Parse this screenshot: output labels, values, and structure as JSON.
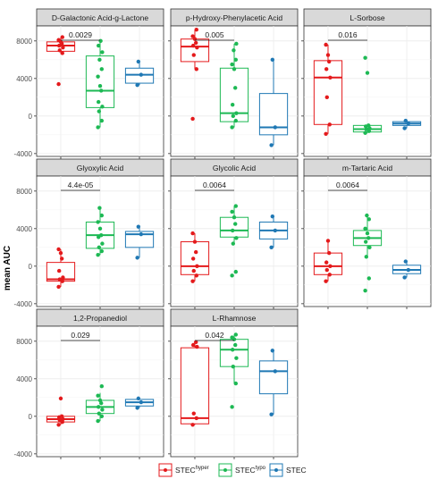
{
  "chart_data": {
    "type": "box",
    "ylabel": "mean AUC",
    "y_ticks": [
      -4000,
      0,
      4000,
      8000
    ],
    "y_tick_labels": [
      "-4000",
      "0",
      "4000",
      "8000"
    ],
    "ylim": [
      -4300,
      9600
    ],
    "groups": [
      {
        "key": "hyper",
        "label": "STEC",
        "sup": "hyper",
        "color": "#E41A1C"
      },
      {
        "key": "typo",
        "label": "STEC",
        "sup": "typo",
        "color": "#1DB954"
      },
      {
        "key": "stec",
        "label": "STEC",
        "sup": "",
        "color": "#1F78B4"
      }
    ],
    "panels": [
      {
        "title": "D-Galactonic Acid-g-Lactone",
        "pvalue": "0.0029",
        "boxes": [
          {
            "q1": 6900,
            "med": 7500,
            "q3": 7900,
            "lo": 6600,
            "hi": 8400,
            "pts": [
              3400,
              6700,
              7000,
              7300,
              7500,
              7700,
              7900,
              8100,
              8400
            ]
          },
          {
            "q1": 900,
            "med": 2700,
            "q3": 6400,
            "lo": -1200,
            "hi": 8000,
            "pts": [
              -1200,
              -500,
              500,
              1000,
              1500,
              2700,
              3200,
              4200,
              5000,
              6000,
              6800,
              7500,
              8000
            ]
          },
          {
            "q1": 3500,
            "med": 4400,
            "q3": 5100,
            "lo": 3300,
            "hi": 5800,
            "pts": [
              3300,
              4400,
              5800
            ]
          }
        ]
      },
      {
        "title": "p-Hydroxy-Phenylacetic Acid",
        "pvalue": "0.005",
        "boxes": [
          {
            "q1": 5800,
            "med": 7400,
            "q3": 8200,
            "lo": 5000,
            "hi": 9200,
            "pts": [
              -300,
              5000,
              6500,
              7300,
              7500,
              7800,
              8200,
              8500,
              9200
            ]
          },
          {
            "q1": -600,
            "med": 300,
            "q3": 5100,
            "lo": -1200,
            "hi": 7700,
            "pts": [
              -1200,
              -500,
              0,
              300,
              1200,
              3000,
              5000,
              5500,
              6000,
              7000,
              7700
            ]
          },
          {
            "q1": -2000,
            "med": -1200,
            "q3": 2400,
            "lo": -3100,
            "hi": 6000,
            "pts": [
              -3100,
              -1200,
              6000
            ]
          }
        ]
      },
      {
        "title": "L-Sorbose",
        "pvalue": "0.016",
        "boxes": [
          {
            "q1": -900,
            "med": 4100,
            "q3": 5900,
            "lo": -1900,
            "hi": 7600,
            "pts": [
              -1900,
              -900,
              2000,
              4100,
              5000,
              5800,
              6500,
              7600
            ]
          },
          {
            "q1": -1700,
            "med": -1400,
            "q3": -1000,
            "lo": -1800,
            "hi": -900,
            "pts": [
              -1800,
              -1600,
              -1400,
              -1300,
              -1100,
              -1000,
              4600,
              6200
            ]
          },
          {
            "q1": -1000,
            "med": -800,
            "q3": -600,
            "lo": -1300,
            "hi": -500,
            "pts": [
              -1300,
              -800,
              -500
            ]
          }
        ]
      },
      {
        "title": "Glyoxylic Acid",
        "pvalue": "4.4e-05",
        "boxes": [
          {
            "q1": -1600,
            "med": -1400,
            "q3": 400,
            "lo": -2200,
            "hi": 1800,
            "pts": [
              -2200,
              -1600,
              -1400,
              -1200,
              -500,
              800,
              1400,
              1800
            ]
          },
          {
            "q1": 1900,
            "med": 3300,
            "q3": 4700,
            "lo": 1200,
            "hi": 6200,
            "pts": [
              1200,
              1600,
              2000,
              2400,
              3100,
              3300,
              4000,
              4700,
              5400,
              6200
            ]
          },
          {
            "q1": 2000,
            "med": 3400,
            "q3": 3700,
            "lo": 900,
            "hi": 4200,
            "pts": [
              900,
              3400,
              4200
            ]
          }
        ]
      },
      {
        "title": "Glycolic Acid",
        "pvalue": "0.0064",
        "boxes": [
          {
            "q1": -900,
            "med": 0,
            "q3": 2600,
            "lo": -1600,
            "hi": 3500,
            "pts": [
              -1600,
              -1000,
              -500,
              0,
              800,
              1500,
              2600,
              3500
            ]
          },
          {
            "q1": 3100,
            "med": 3800,
            "q3": 5200,
            "lo": 2400,
            "hi": 6400,
            "pts": [
              -1000,
              -600,
              2400,
              3000,
              3800,
              4500,
              5200,
              5800,
              6400
            ]
          },
          {
            "q1": 2900,
            "med": 3800,
            "q3": 4700,
            "lo": 2000,
            "hi": 5300,
            "pts": [
              2000,
              3800,
              5300
            ]
          }
        ]
      },
      {
        "title": "m-Tartaric Acid",
        "pvalue": "0.0064",
        "boxes": [
          {
            "q1": -900,
            "med": 0,
            "q3": 1400,
            "lo": -1600,
            "hi": 2700,
            "pts": [
              -1600,
              -900,
              -400,
              0,
              400,
              1400,
              2700
            ]
          },
          {
            "q1": 2200,
            "med": 3000,
            "q3": 3800,
            "lo": 1000,
            "hi": 5400,
            "pts": [
              -2600,
              -1300,
              1000,
              2000,
              2600,
              3000,
              3500,
              4000,
              5000,
              5400
            ]
          },
          {
            "q1": -800,
            "med": -400,
            "q3": 100,
            "lo": -1200,
            "hi": 500,
            "pts": [
              -1200,
              -400,
              500
            ]
          }
        ]
      },
      {
        "title": "1,2-Propanediol",
        "pvalue": "0.029",
        "boxes": [
          {
            "q1": -600,
            "med": -300,
            "q3": 0,
            "lo": -900,
            "hi": 200,
            "pts": [
              -900,
              -600,
              -400,
              -300,
              -100,
              0,
              1900
            ]
          },
          {
            "q1": 300,
            "med": 1000,
            "q3": 1700,
            "lo": -500,
            "hi": 2500,
            "pts": [
              -500,
              0,
              300,
              700,
              1000,
              1400,
              1700,
              2200,
              3200
            ]
          },
          {
            "q1": 1100,
            "med": 1500,
            "q3": 1800,
            "lo": 900,
            "hi": 1900,
            "pts": [
              900,
              1500,
              1900
            ]
          }
        ]
      },
      {
        "title": "L-Rhamnose",
        "pvalue": "0.042",
        "boxes": [
          {
            "q1": -800,
            "med": -200,
            "q3": 7300,
            "lo": -900,
            "hi": 7900,
            "pts": [
              -900,
              -200,
              300,
              7400,
              7600,
              7900
            ]
          },
          {
            "q1": 5300,
            "med": 7100,
            "q3": 8200,
            "lo": 3500,
            "hi": 8700,
            "pts": [
              1000,
              3500,
              5300,
              6200,
              7100,
              7600,
              8200,
              8400,
              8700
            ]
          },
          {
            "q1": 2400,
            "med": 4800,
            "q3": 5900,
            "lo": 200,
            "hi": 7000,
            "pts": [
              200,
              4800,
              7000
            ]
          }
        ]
      }
    ]
  }
}
